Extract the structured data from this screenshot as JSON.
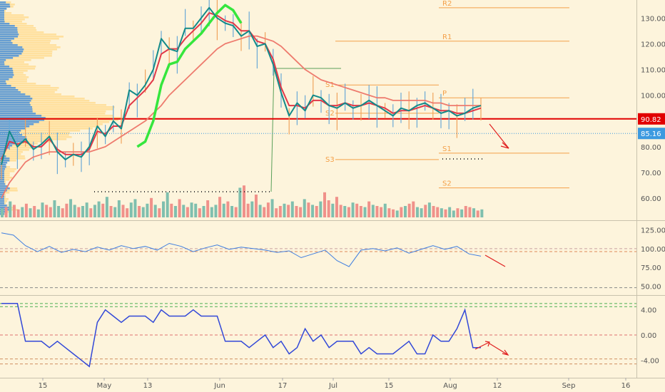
{
  "colors": {
    "background": "#fdf4dc",
    "price_line": "#138a8a",
    "fast_ma": "#e13848",
    "slow_ma": "#ee7b6e",
    "green_ma": "#35e63d",
    "resistance": "#e10000",
    "current_price": "#3c9ae0",
    "pivot_lines": "#f4a049",
    "volume_up": "#7fbfae",
    "volume_down": "#f0918a",
    "osc1": "#3f7ee0",
    "osc2": "#3248d8",
    "arrow": "#e02020"
  },
  "chart_data": [
    {
      "type": "line",
      "panel": "price",
      "ylim": [
        52,
        137
      ],
      "yticks": [
        "60.00",
        "70.00",
        "80.00",
        "90.00",
        "100.00",
        "110.00",
        "120.00",
        "130.00"
      ],
      "resistance_label": "90.82",
      "resistance_value": 90.82,
      "current_label": "85.16",
      "current_value": 85.16,
      "series": [
        {
          "key": "close",
          "x": [
            0,
            2,
            4,
            6,
            8,
            10,
            12,
            14,
            16,
            18,
            20,
            22,
            24,
            26,
            28,
            30,
            32,
            34,
            36,
            38,
            40,
            42,
            44,
            46,
            48,
            50,
            52,
            54,
            56,
            58,
            60,
            62,
            64,
            66,
            68,
            70,
            72,
            74,
            76,
            78,
            80,
            82,
            84,
            86,
            88,
            90,
            92,
            94,
            96,
            98,
            100,
            102,
            104,
            106,
            108,
            110,
            112,
            114,
            116,
            118,
            120
          ],
          "values": [
            73,
            86,
            80,
            83,
            79,
            81,
            84,
            78,
            75,
            77,
            76,
            80,
            88,
            84,
            90,
            87,
            102,
            100,
            104,
            110,
            122,
            118,
            117,
            126,
            126,
            130,
            134,
            130,
            128,
            127,
            123,
            125,
            119,
            120,
            112,
            101,
            92,
            97,
            94,
            100,
            99,
            96,
            95,
            97,
            95,
            96,
            98,
            96,
            94,
            92,
            95,
            94,
            96,
            97,
            95,
            93,
            94,
            92,
            93,
            95,
            96
          ]
        },
        {
          "key": "fast_ma",
          "x": [
            0,
            2,
            4,
            6,
            8,
            10,
            12,
            14,
            16,
            18,
            20,
            22,
            24,
            26,
            28,
            30,
            32,
            34,
            36,
            38,
            40,
            42,
            44,
            46,
            48,
            50,
            52,
            54,
            56,
            58,
            60,
            62,
            64,
            66,
            68,
            70,
            72,
            74,
            76,
            78,
            80,
            82,
            84,
            86,
            88,
            90,
            92,
            94,
            96,
            98,
            100,
            102,
            104,
            106,
            108,
            110,
            112,
            114,
            116,
            118,
            120
          ],
          "values": [
            75,
            82,
            81,
            82,
            80,
            80,
            83,
            79,
            77,
            77,
            77,
            79,
            86,
            85,
            88,
            88,
            96,
            99,
            102,
            106,
            116,
            118,
            118,
            122,
            125,
            128,
            132,
            131,
            129,
            128,
            125,
            125,
            121,
            120,
            114,
            103,
            96,
            96,
            95,
            98,
            98,
            96,
            96,
            97,
            96,
            96,
            97,
            96,
            95,
            93,
            94,
            94,
            95,
            96,
            95,
            94,
            94,
            93,
            93,
            94,
            95
          ]
        },
        {
          "key": "green_ma",
          "x": [
            34,
            36,
            38,
            40,
            42,
            44,
            46,
            48,
            50,
            52,
            54,
            56,
            58,
            60
          ],
          "values": [
            80,
            82,
            90,
            104,
            112,
            113,
            118,
            121,
            124,
            128,
            132,
            135,
            133,
            128
          ]
        },
        {
          "key": "slow_ma",
          "x": [
            0,
            2,
            4,
            6,
            8,
            10,
            12,
            14,
            16,
            18,
            20,
            22,
            24,
            26,
            28,
            30,
            32,
            34,
            36,
            38,
            40,
            42,
            44,
            46,
            48,
            50,
            52,
            54,
            56,
            58,
            60,
            62,
            64,
            66,
            68,
            70,
            72,
            74,
            76,
            78,
            80,
            82,
            84,
            86,
            88,
            90,
            92,
            94,
            96,
            98,
            100,
            102,
            104,
            106,
            108,
            110,
            112,
            114,
            116,
            118,
            120
          ],
          "values": [
            60,
            66,
            70,
            74,
            76,
            77,
            78,
            78,
            78,
            78,
            78,
            78,
            79,
            80,
            82,
            84,
            86,
            88,
            90,
            93,
            96,
            100,
            103,
            106,
            109,
            112,
            115,
            118,
            120,
            121,
            122,
            123,
            123,
            122,
            121,
            119,
            116,
            113,
            110,
            108,
            106,
            105,
            104,
            103,
            102,
            101,
            100,
            99,
            99,
            98,
            98,
            98,
            98,
            98,
            97,
            97,
            96,
            96,
            96,
            96,
            96
          ]
        }
      ],
      "annotations": [
        "R2",
        "R1",
        "S1",
        "S2",
        "S3",
        "P",
        "S1",
        "S2"
      ],
      "pivots": [
        {
          "label": "R2",
          "value": 134
        },
        {
          "label": "R1",
          "value": 121
        },
        {
          "label": "P",
          "value": 99
        },
        {
          "label": "S1",
          "value": 77.5
        },
        {
          "label": "S2",
          "value": 64
        }
      ],
      "prev_pivots": [
        {
          "label": "S1",
          "value": 104
        },
        {
          "label": "S2",
          "value": 93
        },
        {
          "label": "S3",
          "value": 75
        }
      ]
    },
    {
      "type": "bar",
      "panel": "volume",
      "values": [
        8,
        9,
        14,
        11,
        7,
        9,
        12,
        8,
        10,
        7,
        13,
        11,
        9,
        15,
        10,
        8,
        12,
        16,
        11,
        9,
        10,
        13,
        8,
        11,
        14,
        12,
        18,
        10,
        9,
        15,
        11,
        8,
        13,
        16,
        10,
        9,
        12,
        17,
        11,
        8,
        14,
        22,
        12,
        10,
        16,
        11,
        9,
        13,
        12,
        8,
        10,
        15,
        9,
        11,
        18,
        12,
        14,
        10,
        9,
        26,
        28,
        12,
        14,
        20,
        11,
        9,
        13,
        16,
        8,
        10,
        12,
        11,
        14,
        10,
        9,
        16,
        13,
        11,
        10,
        14,
        22,
        15,
        12,
        18,
        11,
        10,
        9,
        13,
        12,
        10,
        9,
        14,
        11,
        10,
        9,
        12,
        8,
        7,
        6,
        9,
        10,
        12,
        14,
        9,
        8,
        11,
        13,
        10,
        9,
        8,
        7,
        9,
        6,
        8,
        7,
        10,
        9,
        8,
        6,
        7
      ],
      "up": [
        1,
        0,
        1,
        0,
        0,
        1,
        0,
        1,
        0,
        1,
        1,
        0,
        0,
        1,
        1,
        0,
        0,
        1,
        1,
        0,
        1,
        1,
        0,
        1,
        1,
        0,
        1,
        0,
        1,
        1,
        0,
        0,
        1,
        1,
        0,
        1,
        1,
        0,
        1,
        0,
        1,
        1,
        0,
        1,
        0,
        1,
        0,
        1,
        1,
        0,
        1,
        0,
        1,
        1,
        0,
        1,
        0,
        1,
        0,
        1,
        0,
        0,
        1,
        0,
        1,
        0,
        0,
        1,
        0,
        0,
        1,
        0,
        1,
        0,
        0,
        1,
        0,
        1,
        0,
        1,
        0,
        0,
        1,
        0,
        0,
        1,
        0,
        1,
        0,
        0,
        1,
        0,
        1,
        0,
        0,
        1,
        0,
        0,
        1,
        0,
        1,
        0,
        0,
        1,
        1,
        0,
        1,
        0,
        0,
        1,
        0,
        1,
        1,
        0,
        1,
        0,
        0,
        1,
        0,
        1
      ]
    },
    {
      "type": "line",
      "panel": "oscillator_1",
      "ylim": [
        40,
        135
      ],
      "yticks": [
        "50.00",
        "75.00",
        "100.00",
        "125.00"
      ],
      "x": [
        0,
        3,
        6,
        9,
        12,
        15,
        18,
        21,
        24,
        27,
        30,
        33,
        36,
        39,
        42,
        45,
        48,
        51,
        54,
        57,
        60,
        63,
        66,
        69,
        72,
        75,
        78,
        81,
        84,
        87,
        90,
        93,
        96,
        99,
        102,
        105,
        108,
        111,
        114,
        117,
        120
      ],
      "values": [
        121,
        118,
        104,
        96,
        103,
        95,
        99,
        96,
        102,
        98,
        104,
        100,
        103,
        98,
        107,
        103,
        96,
        101,
        105,
        99,
        102,
        100,
        98,
        95,
        97,
        88,
        93,
        98,
        84,
        76,
        98,
        100,
        97,
        101,
        94,
        99,
        104,
        99,
        103,
        93,
        90
      ]
    },
    {
      "type": "line",
      "panel": "oscillator_2",
      "ylim": [
        -6,
        6
      ],
      "yticks": [
        "4.00",
        "0.00",
        "-4.00"
      ],
      "x": [
        0,
        2,
        4,
        6,
        8,
        10,
        12,
        14,
        16,
        18,
        20,
        22,
        24,
        26,
        28,
        30,
        32,
        34,
        36,
        38,
        40,
        42,
        44,
        46,
        48,
        50,
        52,
        54,
        56,
        58,
        60,
        62,
        64,
        66,
        68,
        70,
        72,
        74,
        76,
        78,
        80,
        82,
        84,
        86,
        88,
        90,
        92,
        94,
        96,
        98,
        100,
        102,
        104,
        106,
        108,
        110,
        112,
        114,
        116,
        118,
        120
      ],
      "values": [
        5,
        5,
        5,
        -1,
        -1,
        -1,
        -2,
        -1,
        -2,
        -3,
        -4,
        -5,
        2,
        4,
        3,
        2,
        3,
        3,
        3,
        2,
        4,
        3,
        3,
        3,
        4,
        3,
        3,
        3,
        -1,
        -1,
        -1,
        -2,
        -1,
        0,
        -2,
        -1,
        -3,
        -2,
        1,
        -1,
        0,
        -2,
        -1,
        -1,
        -1,
        -3,
        -2,
        -3,
        -3,
        -3,
        -2,
        -1,
        -3,
        -3,
        0,
        -1,
        -1,
        1,
        4,
        -2,
        -2
      ]
    }
  ],
  "x_axis": {
    "labels": [
      "15",
      "May",
      "13",
      "Jun",
      "17",
      "Jul",
      "15",
      "Aug",
      "12",
      "Sep",
      "16"
    ]
  }
}
